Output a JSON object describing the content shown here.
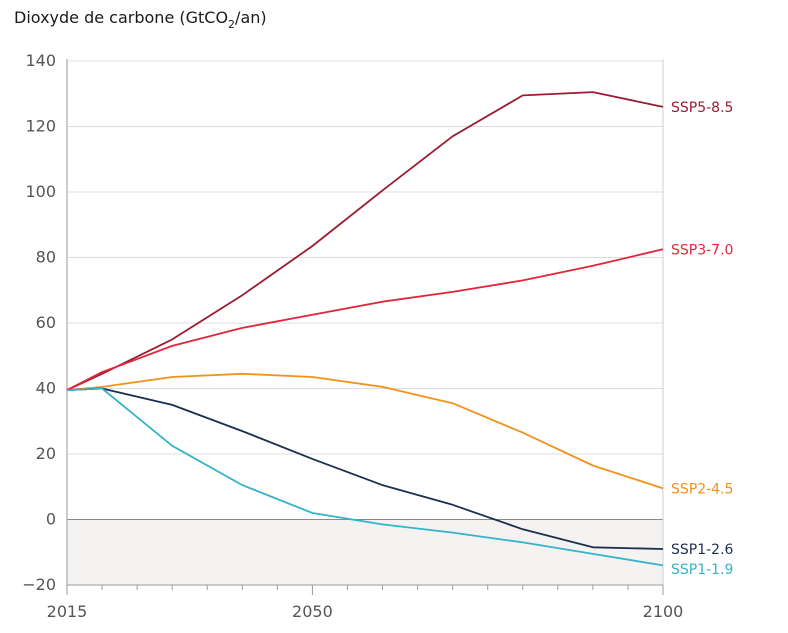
{
  "chart_data": {
    "type": "line",
    "title": "Dioxyde de carbone (GtCO",
    "title_sub": "2",
    "title_tail": "/an)",
    "xlim": [
      2015,
      2100
    ],
    "ylim": [
      -20,
      140
    ],
    "yticks": [
      -20,
      0,
      20,
      40,
      60,
      80,
      100,
      120,
      140
    ],
    "xticks": [
      2015,
      2050,
      2100
    ],
    "negative_region_shaded": true,
    "series": [
      {
        "name": "SSP5-8.5",
        "color": "#9b1c31",
        "x": [
          2015,
          2020,
          2030,
          2040,
          2050,
          2060,
          2070,
          2080,
          2090,
          2100
        ],
        "y": [
          39.5,
          44.5,
          55,
          68.5,
          83.5,
          100.5,
          117,
          129.5,
          130.5,
          126
        ]
      },
      {
        "name": "SSP3-7.0",
        "color": "#e0263a",
        "x": [
          2015,
          2020,
          2030,
          2040,
          2050,
          2060,
          2070,
          2080,
          2090,
          2100
        ],
        "y": [
          39.5,
          45,
          53,
          58.5,
          62.5,
          66.5,
          69.5,
          73,
          77.5,
          82.5
        ]
      },
      {
        "name": "SSP2-4.5",
        "color": "#f2921d",
        "x": [
          2015,
          2020,
          2030,
          2040,
          2050,
          2060,
          2070,
          2080,
          2090,
          2100
        ],
        "y": [
          39.5,
          40.5,
          43.5,
          44.5,
          43.5,
          40.5,
          35.5,
          26.5,
          16.5,
          9.5
        ]
      },
      {
        "name": "SSP1-2.6",
        "color": "#1b2f4e",
        "x": [
          2015,
          2020,
          2030,
          2040,
          2050,
          2060,
          2070,
          2080,
          2090,
          2100
        ],
        "y": [
          39.5,
          40,
          35,
          27,
          18.5,
          10.5,
          4.5,
          -3,
          -8.5,
          -9
        ]
      },
      {
        "name": "SSP1-1.9",
        "color": "#35b3c9",
        "x": [
          2015,
          2020,
          2030,
          2040,
          2050,
          2060,
          2070,
          2080,
          2090,
          2100
        ],
        "y": [
          39.5,
          40,
          22.5,
          10.5,
          2,
          -1.5,
          -4,
          -7,
          -10.5,
          -14
        ]
      }
    ]
  }
}
